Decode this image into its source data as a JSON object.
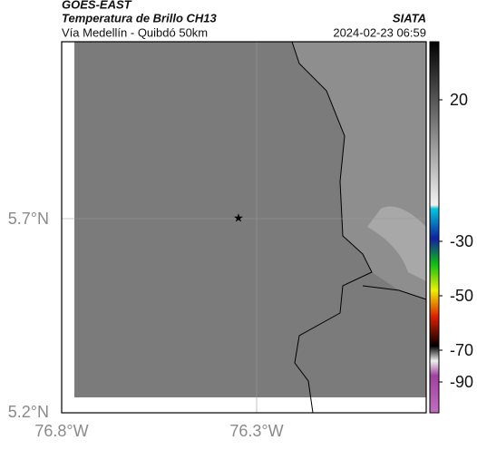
{
  "header": {
    "source": "GOES-EAST",
    "title": "Temperatura de Brillo CH13",
    "subtitle": "Vía Medellín - Quibdó 50km",
    "org": "SIATA",
    "timestamp": "2024-02-23 06:59"
  },
  "map": {
    "lat_ticks": [
      "5.7°N",
      "5.2°N"
    ],
    "lon_ticks": [
      "76.8°W",
      "76.3°W"
    ]
  },
  "colorbar": {
    "ticks": [
      "20",
      "-30",
      "-50",
      "-70",
      "-90"
    ]
  }
}
